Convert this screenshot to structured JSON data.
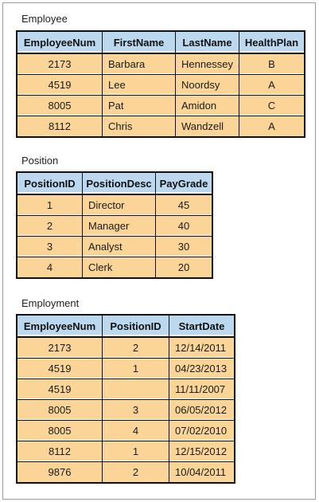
{
  "employee": {
    "title": "Employee",
    "columns": [
      "EmployeeNum",
      "FirstName",
      "LastName",
      "HealthPlan"
    ],
    "rows": [
      [
        "2173",
        "Barbara",
        "Hennessey",
        "B"
      ],
      [
        "4519",
        "Lee",
        "Noordsy",
        "A"
      ],
      [
        "8005",
        "Pat",
        "Amidon",
        "C"
      ],
      [
        "8112",
        "Chris",
        "Wandzell",
        "A"
      ]
    ]
  },
  "position": {
    "title": "Position",
    "columns": [
      "PositionID",
      "PositionDesc",
      "PayGrade"
    ],
    "rows": [
      [
        "1",
        "Director",
        "45"
      ],
      [
        "2",
        "Manager",
        "40"
      ],
      [
        "3",
        "Analyst",
        "30"
      ],
      [
        "4",
        "Clerk",
        "20"
      ]
    ]
  },
  "employment": {
    "title": "Employment",
    "columns": [
      "EmployeeNum",
      "PositionID",
      "StartDate"
    ],
    "rows": [
      [
        "2173",
        "2",
        "12/14/2011"
      ],
      [
        "4519",
        "1",
        "04/23/2013"
      ],
      [
        "4519",
        "",
        "11/11/2007"
      ],
      [
        "8005",
        "3",
        "06/05/2012"
      ],
      [
        "8005",
        "4",
        "07/02/2010"
      ],
      [
        "8112",
        "1",
        "12/15/2012"
      ],
      [
        "9876",
        "2",
        "10/04/2011"
      ]
    ]
  },
  "colors": {
    "header_fill": "#bcd8ef",
    "cell_fill": "#fbd598",
    "border": "#111111"
  }
}
